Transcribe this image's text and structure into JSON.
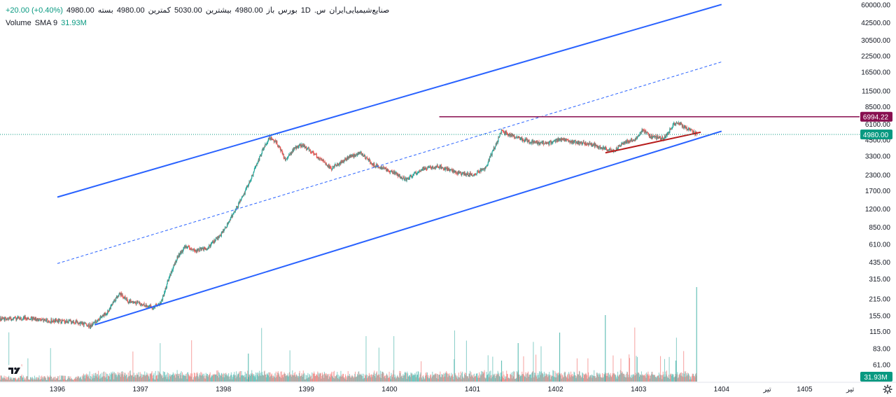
{
  "legend": {
    "symbol": "صنایع‌شیمیایی‌ایران",
    "prefix": ".س",
    "interval": "1D",
    "exchange": "بورس",
    "open_label": "باز",
    "open_value": "4980.00",
    "high_label": "بیشترین",
    "high_value": "5030.00",
    "low_label": "کمترین",
    "low_value": "4980.00",
    "close_label": "بسته",
    "close_value": "4980.00",
    "change": "+20.00 (+0.40%)",
    "volume_label": "Volume",
    "volume_ma": "SMA 9",
    "volume_value": "31.93M"
  },
  "colors": {
    "up": "#26a69a",
    "down": "#ef5350",
    "channel": "#2962ff",
    "resistance": "#880e4f",
    "trend": "#b71c1c",
    "price_tag": "#089981",
    "grid_text": "#131722"
  },
  "chart_data": {
    "type": "candlestick",
    "scale": "log",
    "y_ticks": [
      "60000.00",
      "42500.00",
      "30500.00",
      "22500.00",
      "16500.00",
      "11500.00",
      "8500.00",
      "6100.00",
      "4500.00",
      "3300.00",
      "2300.00",
      "1700.00",
      "1200.00",
      "850.00",
      "610.00",
      "435.00",
      "315.00",
      "215.00",
      "155.00",
      "115.00",
      "83.00",
      "61.00"
    ],
    "x_ticks": [
      "1396",
      "1397",
      "1398",
      "1399",
      "1400",
      "1401",
      "1402",
      "1403",
      "1404",
      "تیر",
      "1405",
      "تیر"
    ],
    "ylim": [
      55,
      62000
    ],
    "last_price": 4980,
    "last_price_label": "4980.00",
    "resistance_level": 6994.22,
    "resistance_label": "6994.22",
    "volume_last_label": "31.93M",
    "price_path": [
      [
        1395.0,
        150
      ],
      [
        1395.3,
        145
      ],
      [
        1395.6,
        148
      ],
      [
        1395.9,
        140
      ],
      [
        1396.2,
        138
      ],
      [
        1396.4,
        128
      ],
      [
        1396.6,
        165
      ],
      [
        1396.75,
        240
      ],
      [
        1396.85,
        205
      ],
      [
        1397.0,
        195
      ],
      [
        1397.15,
        180
      ],
      [
        1397.25,
        200
      ],
      [
        1397.35,
        330
      ],
      [
        1397.45,
        480
      ],
      [
        1397.55,
        590
      ],
      [
        1397.65,
        540
      ],
      [
        1397.8,
        560
      ],
      [
        1397.95,
        700
      ],
      [
        1398.05,
        900
      ],
      [
        1398.15,
        1200
      ],
      [
        1398.25,
        1600
      ],
      [
        1398.35,
        2300
      ],
      [
        1398.45,
        3400
      ],
      [
        1398.55,
        4700
      ],
      [
        1398.65,
        4200
      ],
      [
        1398.75,
        3000
      ],
      [
        1398.85,
        3800
      ],
      [
        1398.95,
        4100
      ],
      [
        1399.1,
        3400
      ],
      [
        1399.3,
        2600
      ],
      [
        1399.5,
        3200
      ],
      [
        1399.65,
        3500
      ],
      [
        1399.8,
        2800
      ],
      [
        1400.0,
        2500
      ],
      [
        1400.2,
        2100
      ],
      [
        1400.4,
        2600
      ],
      [
        1400.6,
        2700
      ],
      [
        1400.8,
        2400
      ],
      [
        1401.0,
        2300
      ],
      [
        1401.15,
        2600
      ],
      [
        1401.25,
        3700
      ],
      [
        1401.35,
        5300
      ],
      [
        1401.5,
        4800
      ],
      [
        1401.7,
        4300
      ],
      [
        1401.9,
        4200
      ],
      [
        1402.05,
        4500
      ],
      [
        1402.25,
        4300
      ],
      [
        1402.45,
        4100
      ],
      [
        1402.6,
        3800
      ],
      [
        1402.7,
        3600
      ],
      [
        1402.8,
        4200
      ],
      [
        1402.95,
        4500
      ],
      [
        1403.05,
        5400
      ],
      [
        1403.15,
        4800
      ],
      [
        1403.3,
        4600
      ],
      [
        1403.45,
        6300
      ],
      [
        1403.55,
        5800
      ],
      [
        1403.7,
        4980
      ]
    ],
    "channel": {
      "upper": [
        [
          1396.0,
          1500
        ],
        [
          1399.0,
          3800
        ],
        [
          1404.0,
          60000
        ]
      ],
      "lower": [
        [
          1396.45,
          130
        ],
        [
          1404.0,
          5300
        ]
      ],
      "mid": [
        [
          1396.0,
          420
        ],
        [
          1404.0,
          20000
        ]
      ]
    }
  }
}
